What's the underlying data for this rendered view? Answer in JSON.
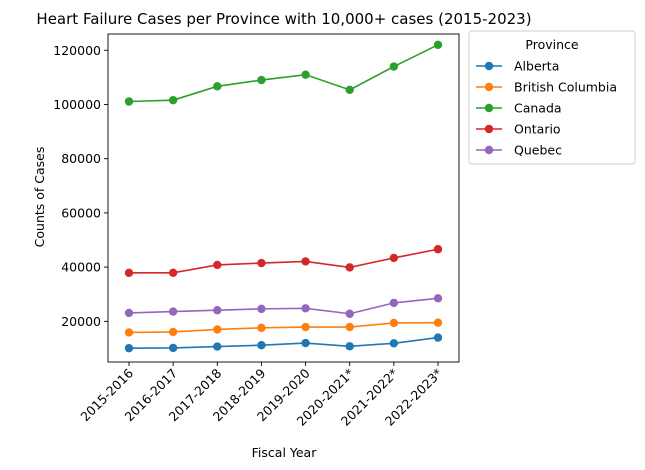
{
  "chart_data": {
    "type": "line",
    "title": "Heart Failure Cases per Province with 10,000+ cases (2015-2023)",
    "xlabel": "Fiscal Year",
    "ylabel": "Counts of Cases",
    "categories": [
      "2015-2016",
      "2016-2017",
      "2017-2018",
      "2018-2019",
      "2019-2020",
      "2020-2021*",
      "2021-2022*",
      "2022-2023*"
    ],
    "ylim": [
      5000,
      126000
    ],
    "yticks": [
      20000,
      40000,
      60000,
      80000,
      100000,
      120000
    ],
    "ytick_labels": [
      "20000",
      "40000",
      "60000",
      "80000",
      "100000",
      "120000"
    ],
    "grid": false,
    "legend": {
      "title": "Province",
      "placement": "outside-top-right"
    },
    "series": [
      {
        "name": "Alberta",
        "color": "#1f77b4",
        "values": [
          10100,
          10200,
          10700,
          11200,
          12000,
          10800,
          11900,
          14000
        ]
      },
      {
        "name": "British Columbia",
        "color": "#ff7f0e",
        "values": [
          15900,
          16100,
          17000,
          17600,
          17900,
          17900,
          19400,
          19500
        ]
      },
      {
        "name": "Canada",
        "color": "#2ca02c",
        "values": [
          101100,
          101600,
          106700,
          109000,
          111000,
          105400,
          114000,
          122000
        ]
      },
      {
        "name": "Ontario",
        "color": "#d62728",
        "values": [
          37900,
          37900,
          40800,
          41500,
          42100,
          39900,
          43400,
          46600
        ]
      },
      {
        "name": "Quebec",
        "color": "#9467bd",
        "values": [
          23100,
          23600,
          24100,
          24600,
          24800,
          22800,
          26800,
          28500
        ]
      }
    ]
  }
}
